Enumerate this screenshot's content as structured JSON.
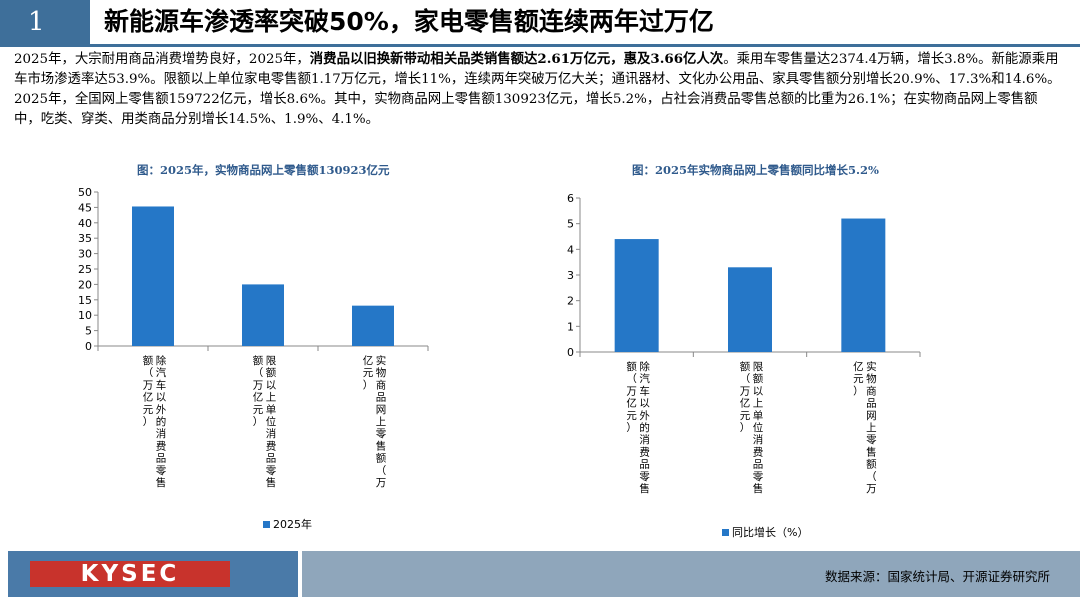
{
  "header": {
    "section_number": "1",
    "title": "新能源车渗透率突破50%，家电零售额连续两年过万亿"
  },
  "body": {
    "p1_a": "2025年，大宗耐用商品消费增势良好，2025年，",
    "p1_bold": "消费品以旧换新带动相关品类销售额达2.61万亿元，惠及3.66亿人次",
    "p1_b": "。乘用车零售量达2374.4万辆，增长3.8%。新能源乘用车市场渗透率达53.9%。限额以上单位家电零售额1.17万亿元，增长11%，连续两年突破万亿大关；通讯器材、文化办公用品、家具零售额分别增长20.9%、17.3%和14.6%。",
    "p2": "2025年，全国网上零售额159722亿元，增长8.6%。其中，实物商品网上零售额130923亿元，增长5.2%，占社会消费品零售总额的比重为26.1%；在实物商品网上零售额中，吃类、穿类、用类商品分别增长14.5%、1.9%、4.1%。"
  },
  "chart_data": [
    {
      "type": "bar",
      "title": "图：2025年，实物商品网上零售额130923亿元",
      "categories": [
        "除汽车以外的消费品零售额（万亿元）",
        "限额以上单位消费品零售额（万亿元）",
        "实物商品网上零售额（万亿元）"
      ],
      "series": [
        {
          "name": "2025年",
          "values": [
            45.3,
            20.0,
            13.1
          ]
        }
      ],
      "ylim": [
        0,
        50
      ],
      "yticks": [
        0,
        5,
        10,
        15,
        20,
        25,
        30,
        35,
        40,
        45,
        50
      ],
      "color": "#2577c7",
      "legend": "bottom"
    },
    {
      "type": "bar",
      "title": "图：2025年实物商品网上零售额同比增长5.2%",
      "categories": [
        "除汽车以外的消费品零售额（万亿元）",
        "限额以上单位消费品零售额（万亿元）",
        "实物商品网上零售额（万亿元）"
      ],
      "series": [
        {
          "name": "同比增长（%）",
          "values": [
            4.4,
            3.3,
            5.2
          ]
        }
      ],
      "ylim": [
        0,
        6
      ],
      "yticks": [
        0,
        1,
        2,
        3,
        4,
        5,
        6
      ],
      "color": "#2577c7",
      "legend": "bottom"
    }
  ],
  "footer": {
    "logo": "KYSEC",
    "source": "数据来源：国家统计局、开源证券研究所"
  }
}
